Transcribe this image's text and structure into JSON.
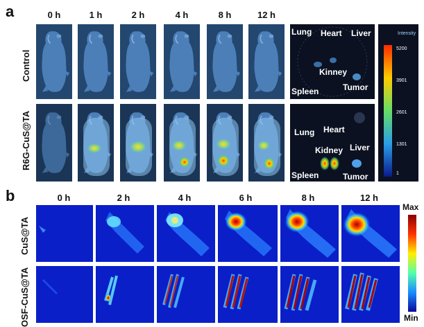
{
  "panel_a": {
    "letter": "a",
    "time_labels": [
      "0 h",
      "1 h",
      "2 h",
      "4 h",
      "8 h",
      "12 h"
    ],
    "row_labels": [
      "Control",
      "R6G-CuS@TA"
    ],
    "organ_labels_control": [
      "Lung",
      "Heart",
      "Liver",
      "Kinney",
      "Spleen",
      "Tumor"
    ],
    "organ_labels_treated": [
      "Lung",
      "Heart",
      "Kidney",
      "Liver",
      "Spleen",
      "Tumor"
    ],
    "colorbar": {
      "title": "Intensity",
      "ticks": [
        "5200",
        "3901",
        "2601",
        "1301",
        "1"
      ]
    }
  },
  "panel_b": {
    "letter": "b",
    "time_labels": [
      "0 h",
      "2 h",
      "4 h",
      "6 h",
      "8 h",
      "12 h"
    ],
    "row_labels": [
      "CuS@TA",
      "OSF-CuS@TA"
    ],
    "colorbar": {
      "max_label": "Max",
      "min_label": "Min"
    }
  },
  "colors": {
    "mouse_background": "#3a6aa0",
    "thermal_background": "#0a1fc8",
    "colorbar_top": "#ff2a00",
    "colorbar_bottom": "#0a1a8c"
  }
}
